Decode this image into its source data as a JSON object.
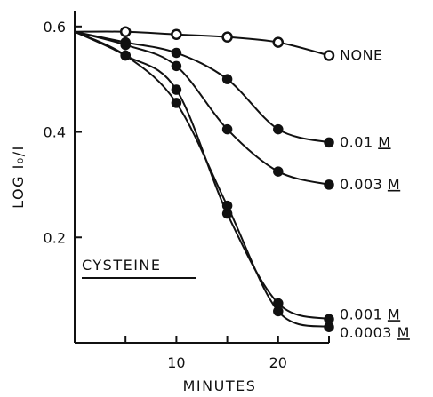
{
  "chart_data": {
    "type": "line",
    "xlabel": "MINUTES",
    "ylabel": "LOG I₀/I",
    "annotation": "CYSTEINE",
    "xlim": [
      0,
      25
    ],
    "ylim": [
      0,
      0.63
    ],
    "xticks": [
      {
        "value": 10,
        "label": "10"
      },
      {
        "value": 20,
        "label": "20"
      }
    ],
    "yticks": [
      {
        "value": 0.2,
        "label": "0.2"
      },
      {
        "value": 0.4,
        "label": "0.4"
      },
      {
        "value": 0.6,
        "label": "0.6"
      }
    ],
    "grid": false,
    "series": [
      {
        "name": "NONE",
        "conc": "",
        "unit": "",
        "marker": "open",
        "points": [
          [
            0,
            0.59
          ],
          [
            5,
            0.59
          ],
          [
            10,
            0.585
          ],
          [
            15,
            0.58
          ],
          [
            20,
            0.57
          ],
          [
            25,
            0.545
          ]
        ]
      },
      {
        "name": "0.01",
        "conc": "0.01",
        "unit": "M",
        "marker": "filled",
        "points": [
          [
            0,
            0.59
          ],
          [
            5,
            0.57
          ],
          [
            10,
            0.55
          ],
          [
            15,
            0.5
          ],
          [
            20,
            0.405
          ],
          [
            25,
            0.38
          ]
        ]
      },
      {
        "name": "0.003",
        "conc": "0.003",
        "unit": "M",
        "marker": "filled",
        "points": [
          [
            0,
            0.59
          ],
          [
            5,
            0.565
          ],
          [
            10,
            0.525
          ],
          [
            15,
            0.405
          ],
          [
            20,
            0.325
          ],
          [
            25,
            0.3
          ]
        ]
      },
      {
        "name": "0.001",
        "conc": "0.001",
        "unit": "M",
        "marker": "filled",
        "points": [
          [
            0,
            0.59
          ],
          [
            5,
            0.545
          ],
          [
            10,
            0.48
          ],
          [
            15,
            0.245
          ],
          [
            20,
            0.075
          ],
          [
            25,
            0.045
          ]
        ]
      },
      {
        "name": "0.0003",
        "conc": "0.0003",
        "unit": "M",
        "marker": "filled",
        "points": [
          [
            0,
            0.59
          ],
          [
            5,
            0.545
          ],
          [
            10,
            0.455
          ],
          [
            15,
            0.26
          ],
          [
            20,
            0.06
          ],
          [
            25,
            0.03
          ]
        ]
      }
    ]
  }
}
